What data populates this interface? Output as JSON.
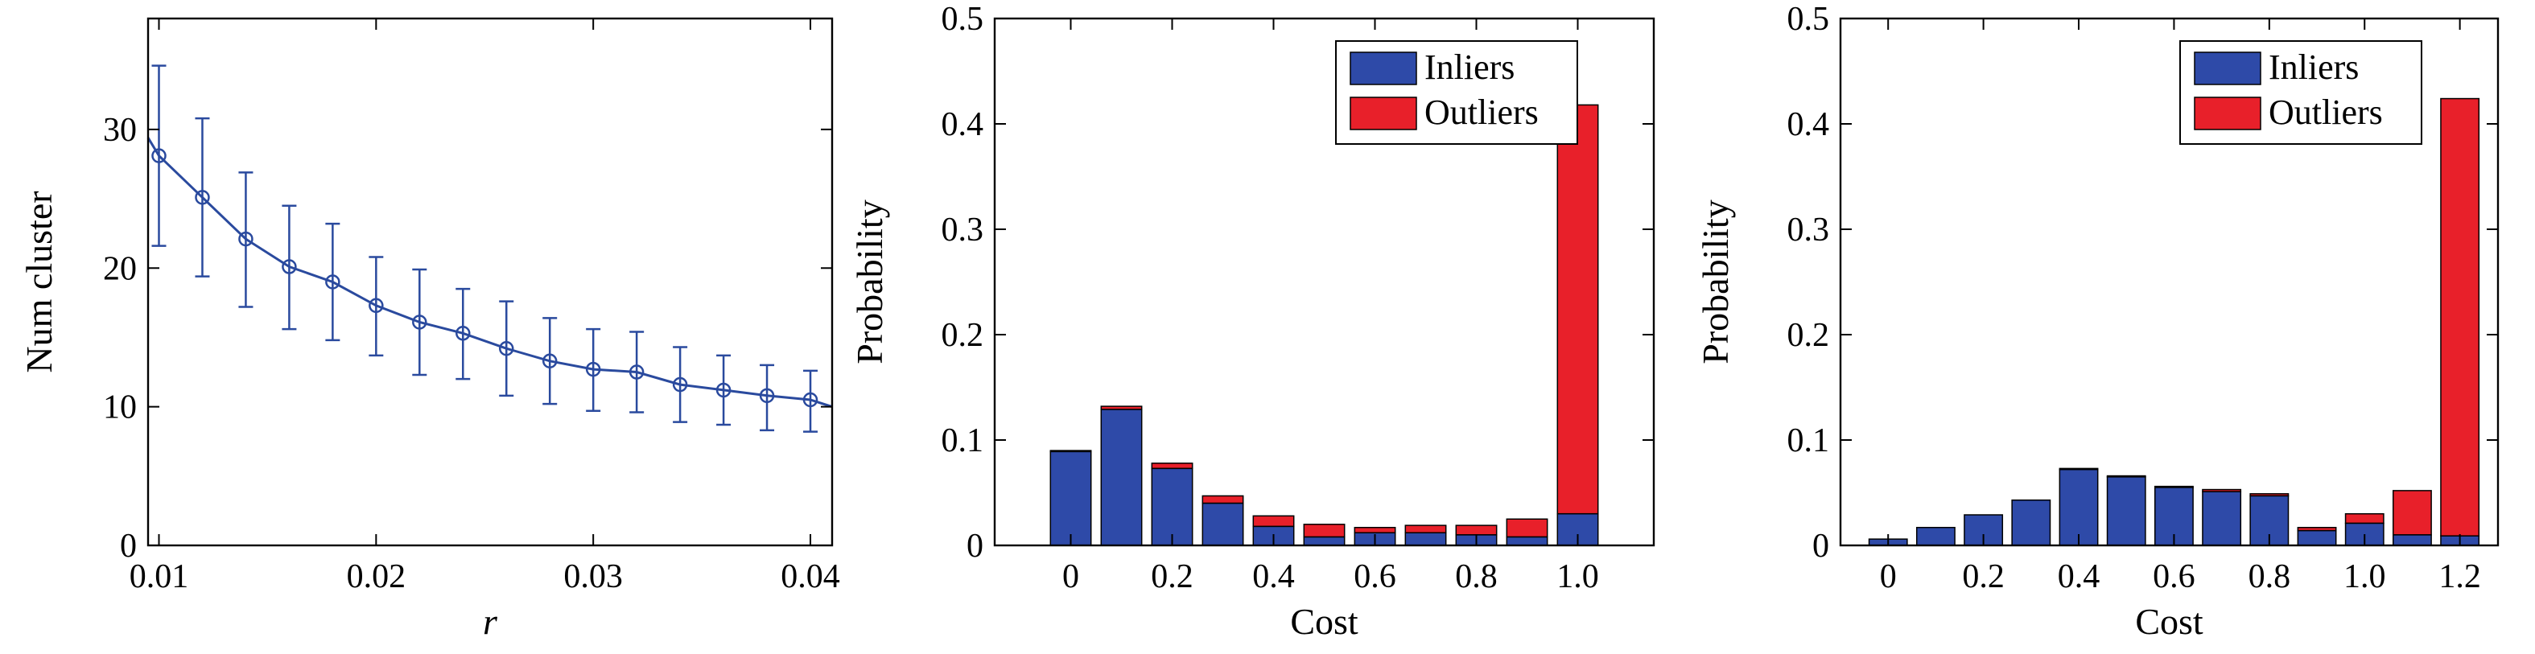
{
  "colors": {
    "line": "#2a4a9e",
    "inliers": "#2e4aa8",
    "outliers": "#e8202a",
    "axis": "#000000"
  },
  "chart_data": [
    {
      "type": "line",
      "xlabel": "r",
      "ylabel": "Num cluster",
      "xlim": [
        0.0095,
        0.041
      ],
      "ylim": [
        0,
        38
      ],
      "x_ticks": [
        0.01,
        0.02,
        0.03,
        0.04
      ],
      "x_tick_labels": [
        "0.01",
        "0.02",
        "0.03",
        "0.04"
      ],
      "y_ticks": [
        0,
        10,
        20,
        30
      ],
      "y_tick_labels": [
        "0",
        "10",
        "20",
        "30"
      ],
      "grid": false,
      "series": [
        {
          "x": [
            0.01,
            0.012,
            0.014,
            0.016,
            0.018,
            0.02,
            0.022,
            0.024,
            0.026,
            0.028,
            0.03,
            0.032,
            0.034,
            0.036,
            0.038,
            0.04
          ],
          "y": [
            28.1,
            25.1,
            22.1,
            20.1,
            19.0,
            17.3,
            16.1,
            15.3,
            14.2,
            13.3,
            12.7,
            12.5,
            11.6,
            11.2,
            10.8,
            10.5
          ],
          "err_low": [
            21.6,
            19.4,
            17.2,
            15.6,
            14.8,
            13.7,
            12.3,
            12.0,
            10.8,
            10.2,
            9.7,
            9.6,
            8.9,
            8.7,
            8.3,
            8.2
          ],
          "err_high": [
            34.6,
            30.8,
            26.9,
            24.5,
            23.2,
            20.8,
            19.9,
            18.5,
            17.6,
            16.4,
            15.6,
            15.4,
            14.3,
            13.7,
            13.0,
            12.6
          ],
          "curve_x": [
            0.0095,
            0.041
          ],
          "curve_y": [
            29.4,
            10.0
          ]
        }
      ]
    },
    {
      "type": "bar",
      "stacked": true,
      "xlabel": "Cost",
      "ylabel": "Probability",
      "xlim": [
        -0.15,
        1.15
      ],
      "ylim": [
        0,
        0.5
      ],
      "x_ticks": [
        0,
        0.2,
        0.4,
        0.6,
        0.8,
        1.0
      ],
      "x_tick_labels": [
        "0",
        "0.2",
        "0.4",
        "0.6",
        "0.8",
        "1.0"
      ],
      "y_ticks": [
        0,
        0.1,
        0.2,
        0.3,
        0.4,
        0.5
      ],
      "y_tick_labels": [
        "0",
        "0.1",
        "0.2",
        "0.3",
        "0.4",
        "0.5"
      ],
      "legend_position": "top-right",
      "grid": false,
      "x": [
        0,
        0.1,
        0.2,
        0.3,
        0.4,
        0.5,
        0.6,
        0.7,
        0.8,
        0.9,
        1.0
      ],
      "series": [
        {
          "name": "Inliers",
          "values": [
            0.089,
            0.129,
            0.073,
            0.04,
            0.018,
            0.008,
            0.012,
            0.012,
            0.01,
            0.008,
            0.03
          ]
        },
        {
          "name": "Outliers",
          "values": [
            0.001,
            0.003,
            0.005,
            0.007,
            0.01,
            0.012,
            0.005,
            0.007,
            0.009,
            0.017,
            0.388
          ]
        }
      ]
    },
    {
      "type": "bar",
      "stacked": true,
      "xlabel": "Cost",
      "ylabel": "Probability",
      "xlim": [
        -0.1,
        1.28
      ],
      "ylim": [
        0,
        0.5
      ],
      "x_ticks": [
        0,
        0.2,
        0.4,
        0.6,
        0.8,
        1.0,
        1.2
      ],
      "x_tick_labels": [
        "0",
        "0.2",
        "0.4",
        "0.6",
        "0.8",
        "1.0",
        "1.2"
      ],
      "y_ticks": [
        0,
        0.1,
        0.2,
        0.3,
        0.4,
        0.5
      ],
      "y_tick_labels": [
        "0",
        "0.1",
        "0.2",
        "0.3",
        "0.4",
        "0.5"
      ],
      "legend_position": "top-right",
      "grid": false,
      "x": [
        0,
        0.1,
        0.2,
        0.3,
        0.4,
        0.5,
        0.6,
        0.7,
        0.8,
        0.9,
        1.0,
        1.1,
        1.2
      ],
      "series": [
        {
          "name": "Inliers",
          "values": [
            0.006,
            0.017,
            0.029,
            0.043,
            0.072,
            0.065,
            0.055,
            0.051,
            0.047,
            0.014,
            0.021,
            0.01,
            0.009
          ]
        },
        {
          "name": "Outliers",
          "values": [
            0.0,
            0.0,
            0.0,
            0.0,
            0.001,
            0.001,
            0.001,
            0.002,
            0.002,
            0.003,
            0.009,
            0.042,
            0.415
          ]
        }
      ]
    }
  ]
}
